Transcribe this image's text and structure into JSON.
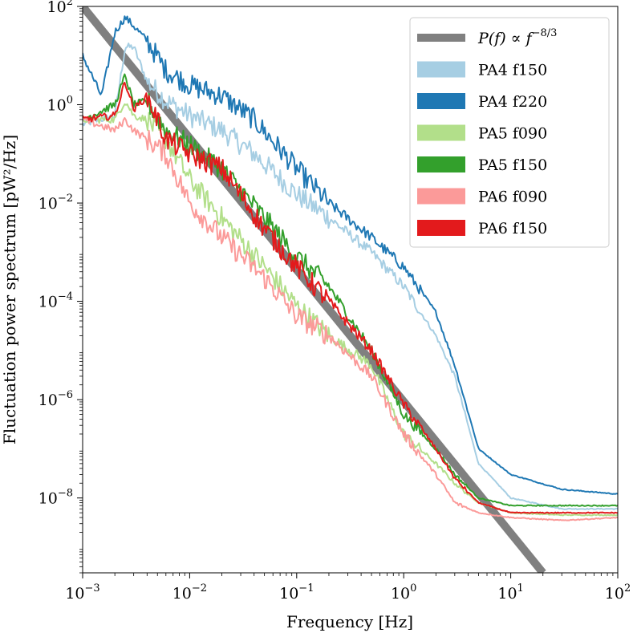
{
  "chart_data": {
    "type": "line",
    "xscale": "log",
    "yscale": "log",
    "xlim": [
      0.001,
      100
    ],
    "ylim": [
      3e-10,
      100
    ],
    "xlabel": "Frequency [Hz]",
    "ylabel": "Fluctuation power spectrum [pW²/Hz]",
    "x_ticks": [
      {
        "base": "10",
        "exp": "−3"
      },
      {
        "base": "10",
        "exp": "−2"
      },
      {
        "base": "10",
        "exp": "−1"
      },
      {
        "base": "10",
        "exp": "0"
      },
      {
        "base": "10",
        "exp": "1"
      },
      {
        "base": "10",
        "exp": "2"
      }
    ],
    "y_ticks": [
      {
        "base": "10",
        "exp": "−8"
      },
      {
        "base": "10",
        "exp": "−6"
      },
      {
        "base": "10",
        "exp": "−4"
      },
      {
        "base": "10",
        "exp": "−2"
      },
      {
        "base": "10",
        "exp": "0"
      },
      {
        "base": "10",
        "exp": "2"
      }
    ],
    "x_tick_values": [
      0.001,
      0.01,
      0.1,
      1,
      10,
      100
    ],
    "y_tick_values": [
      1e-08,
      1e-06,
      0.0001,
      0.01,
      1,
      100
    ],
    "legend_position": "top-right",
    "reference_line": {
      "label_main": "P(f) ∝ f",
      "label_exp": "−8/3",
      "color": "#808080",
      "exponent": -2.6667,
      "x": [
        0.001,
        20
      ],
      "y": [
        100,
        3e-10
      ]
    },
    "series": [
      {
        "name": "PA4 f150",
        "color": "#a6cee3",
        "x": [
          0.001,
          0.002,
          0.0025,
          0.003,
          0.004,
          0.006,
          0.01,
          0.02,
          0.04,
          0.1,
          0.2,
          0.5,
          1,
          2,
          3,
          5,
          10,
          30,
          100
        ],
        "y": [
          0.4,
          0.6,
          15,
          15,
          3,
          1.2,
          0.6,
          0.3,
          0.1,
          0.015,
          0.005,
          0.001,
          0.0002,
          2e-05,
          3e-06,
          5e-08,
          1e-08,
          6e-09,
          6e-09
        ]
      },
      {
        "name": "PA4 f220",
        "color": "#1f78b4",
        "x": [
          0.001,
          0.0015,
          0.002,
          0.0025,
          0.003,
          0.004,
          0.006,
          0.01,
          0.02,
          0.04,
          0.1,
          0.2,
          0.5,
          1,
          2,
          3,
          5,
          10,
          30,
          100
        ],
        "y": [
          10,
          1.5,
          30,
          60,
          40,
          20,
          5,
          2.5,
          1.5,
          0.5,
          0.05,
          0.01,
          0.002,
          0.0005,
          6e-05,
          5e-06,
          1e-07,
          3e-08,
          1.5e-08,
          1.2e-08
        ]
      },
      {
        "name": "PA5 f090",
        "color": "#b2df8a",
        "x": [
          0.001,
          0.002,
          0.0025,
          0.003,
          0.004,
          0.006,
          0.01,
          0.02,
          0.05,
          0.1,
          0.2,
          0.5,
          1,
          2,
          3,
          5,
          10,
          30,
          100
        ],
        "y": [
          0.5,
          0.5,
          1.2,
          0.6,
          0.5,
          0.2,
          0.03,
          0.005,
          0.0005,
          8e-05,
          2e-05,
          5e-06,
          2e-07,
          5e-08,
          2e-08,
          8e-09,
          5e-09,
          4.5e-09,
          4.5e-09
        ]
      },
      {
        "name": "PA5 f150",
        "color": "#33a02c",
        "x": [
          0.001,
          0.002,
          0.0025,
          0.003,
          0.004,
          0.006,
          0.01,
          0.02,
          0.05,
          0.1,
          0.2,
          0.5,
          1,
          2,
          3,
          5,
          10,
          30,
          100
        ],
        "y": [
          0.5,
          1.0,
          4,
          1.0,
          1.2,
          0.3,
          0.15,
          0.05,
          0.005,
          0.0008,
          0.0002,
          1e-05,
          5e-07,
          1e-07,
          3e-08,
          1e-08,
          7e-09,
          7e-09,
          7e-09
        ]
      },
      {
        "name": "PA6 f090",
        "color": "#fb9a99",
        "x": [
          0.001,
          0.002,
          0.0025,
          0.003,
          0.004,
          0.006,
          0.01,
          0.02,
          0.05,
          0.1,
          0.2,
          0.5,
          1,
          2,
          3,
          5,
          10,
          30,
          100
        ],
        "y": [
          0.5,
          0.3,
          0.5,
          0.3,
          0.2,
          0.1,
          0.01,
          0.002,
          0.0003,
          5e-05,
          2e-05,
          3e-06,
          2e-07,
          3e-08,
          8e-09,
          5e-09,
          4e-09,
          3.5e-09,
          4e-09
        ]
      },
      {
        "name": "PA6 f150",
        "color": "#e31a1c",
        "x": [
          0.001,
          0.002,
          0.0025,
          0.003,
          0.004,
          0.006,
          0.01,
          0.02,
          0.05,
          0.1,
          0.2,
          0.5,
          1,
          2,
          3,
          5,
          10,
          30,
          100
        ],
        "y": [
          0.5,
          0.6,
          3,
          0.8,
          1.5,
          0.2,
          0.1,
          0.05,
          0.003,
          0.0005,
          0.0001,
          1e-05,
          8e-07,
          1e-07,
          2.5e-08,
          8e-09,
          5e-09,
          5e-09,
          5e-09
        ]
      }
    ]
  }
}
